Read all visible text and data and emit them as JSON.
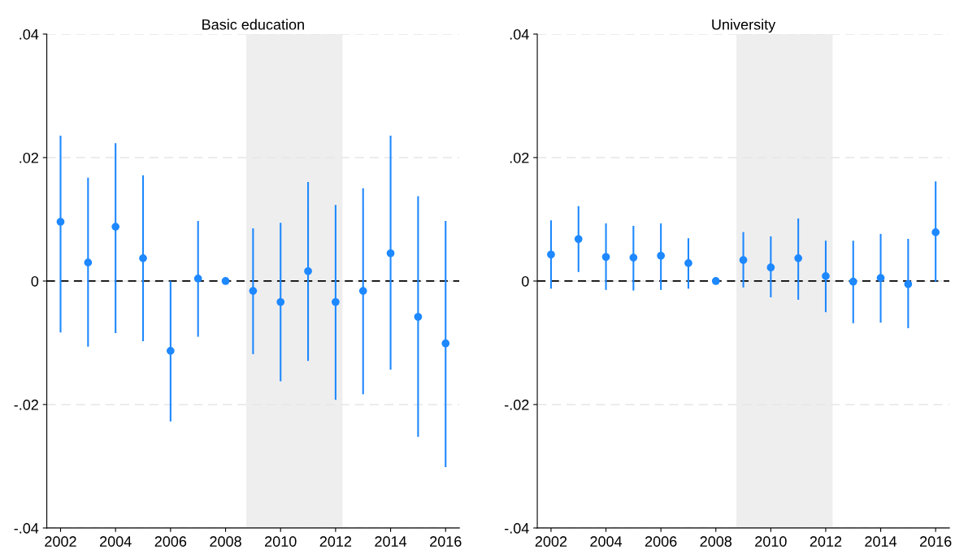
{
  "chart_data": [
    {
      "type": "scatter",
      "title": "Basic education",
      "x": [
        2002,
        2003,
        2004,
        2005,
        2006,
        2007,
        2008,
        2009,
        2010,
        2011,
        2012,
        2013,
        2014,
        2015,
        2016
      ],
      "series": [
        {
          "color": "#1e88ff",
          "values": [
            0.0096,
            0.003,
            0.0088,
            0.0037,
            -0.0113,
            0.0004,
            0,
            -0.0016,
            -0.0034,
            0.0016,
            -0.0034,
            -0.0016,
            0.0045,
            -0.0058,
            -0.0101
          ],
          "errors": [
            [
              -0.0082,
              0.0234
            ],
            [
              -0.0105,
              0.0166
            ],
            [
              -0.0083,
              0.0222
            ],
            [
              -0.0096,
              0.017
            ],
            [
              -0.0226,
              -0.0001
            ],
            [
              -0.0089,
              0.0096
            ],
            null,
            [
              -0.0117,
              0.0084
            ],
            [
              -0.0161,
              0.0093
            ],
            [
              -0.0128,
              0.0159
            ],
            [
              -0.0191,
              0.0122
            ],
            [
              -0.0182,
              0.0149
            ],
            [
              -0.0142,
              0.0234
            ],
            [
              -0.0251,
              0.0136
            ],
            [
              -0.03,
              0.0096
            ]
          ]
        }
      ],
      "xlim": [
        2001.5,
        2016.5
      ],
      "xticks": [
        2002,
        2004,
        2006,
        2008,
        2010,
        2012,
        2014,
        2016
      ],
      "ylim": [
        -0.04,
        0.04
      ],
      "yticks": [
        {
          "value": -0.04,
          "label": "-.04"
        },
        {
          "value": -0.02,
          "label": "-.02"
        },
        0,
        {
          "value": 0.02,
          "label": ".02"
        },
        {
          "value": 0.04,
          "label": ".04"
        }
      ],
      "ref_lines": [
        {
          "axis": "y",
          "value": 0,
          "color": "#000000",
          "line_style": "dashed"
        }
      ],
      "bands": [
        {
          "axis": "x",
          "from": 2008.75,
          "to": 2012.25,
          "color": "#eeeeee"
        }
      ],
      "grid": "y",
      "marker": "circle"
    },
    {
      "type": "scatter",
      "title": "University",
      "x": [
        2002,
        2003,
        2004,
        2005,
        2006,
        2007,
        2008,
        2009,
        2010,
        2011,
        2012,
        2013,
        2014,
        2015,
        2016
      ],
      "series": [
        {
          "color": "#1e88ff",
          "values": [
            0.0043,
            0.0068,
            0.0039,
            0.0038,
            0.0041,
            0.0029,
            0,
            0.0034,
            0.0022,
            0.0037,
            0.0008,
            -0.0001,
            0.0005,
            -0.0005,
            0.0079
          ],
          "errors": [
            [
              -0.0011,
              0.0097
            ],
            [
              0.0016,
              0.012
            ],
            [
              -0.0013,
              0.0092
            ],
            [
              -0.0014,
              0.0088
            ],
            [
              -0.0013,
              0.0092
            ],
            [
              -0.0011,
              0.0068
            ],
            null,
            [
              -0.0009,
              0.0078
            ],
            [
              -0.0025,
              0.0071
            ],
            [
              -0.0029,
              0.01
            ],
            [
              -0.0049,
              0.0064
            ],
            [
              -0.0067,
              0.0064
            ],
            [
              -0.0066,
              0.0075
            ],
            [
              -0.0075,
              0.0067
            ],
            [
              0.0,
              0.016
            ]
          ]
        }
      ],
      "xlim": [
        2001.5,
        2016.5
      ],
      "xticks": [
        2002,
        2004,
        2006,
        2008,
        2010,
        2012,
        2014,
        2016
      ],
      "ylim": [
        -0.04,
        0.04
      ],
      "yticks": [
        {
          "value": -0.04,
          "label": "-.04"
        },
        {
          "value": -0.02,
          "label": "-.02"
        },
        0,
        {
          "value": 0.02,
          "label": ".02"
        },
        {
          "value": 0.04,
          "label": ".04"
        }
      ],
      "ref_lines": [
        {
          "axis": "y",
          "value": 0,
          "color": "#000000",
          "line_style": "dashed"
        }
      ],
      "bands": [
        {
          "axis": "x",
          "from": 2008.75,
          "to": 2012.25,
          "color": "#eeeeee"
        }
      ],
      "grid": "y",
      "marker": "circle"
    }
  ]
}
